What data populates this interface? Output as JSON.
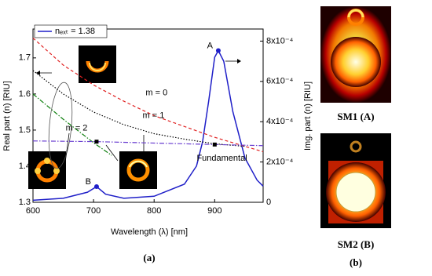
{
  "chart_data": {
    "type": "line",
    "xlabel": "Wavelength (λ) [nm]",
    "ylabel": "Real part (n) [RIU]",
    "y2label": "Img. part (n) [RIU]",
    "xlim": [
      600,
      980
    ],
    "xticks": [
      600,
      700,
      800,
      900
    ],
    "ylim": [
      1.3,
      1.78
    ],
    "yticks": [
      1.3,
      1.4,
      1.5,
      1.6,
      1.7
    ],
    "y2lim": [
      0,
      0.00086
    ],
    "y2ticks": [
      {
        "value": 0,
        "label": "0"
      },
      {
        "value": 0.0002,
        "label": "2x10⁻⁴"
      },
      {
        "value": 0.0004,
        "label": "4x10⁻⁴"
      },
      {
        "value": 0.0006,
        "label": "6x10⁻⁴"
      },
      {
        "value": 0.0008,
        "label": "8x10⁻⁴"
      }
    ],
    "series": [
      {
        "name": "nₑₓₜ = 1.38",
        "color": "#1f1fc8",
        "dash": "none",
        "axis": "y2",
        "x": [
          600,
          650,
          690,
          705,
          720,
          750,
          800,
          850,
          870,
          880,
          890,
          900,
          906,
          915,
          930,
          950,
          970,
          980
        ],
        "values": [
          1e-05,
          2e-05,
          5e-05,
          7.8e-05,
          4e-05,
          2e-05,
          3e-05,
          9e-05,
          0.00018,
          0.0003,
          0.0005,
          0.00072,
          0.000753,
          0.0007,
          0.00045,
          0.00022,
          0.00011,
          8e-05
        ]
      },
      {
        "color": "#e02020",
        "dash": "4,3",
        "x": [
          600,
          650,
          700,
          750,
          800,
          850,
          900,
          950,
          980
        ],
        "values": [
          1.755,
          1.68,
          1.625,
          1.58,
          1.54,
          1.51,
          1.48,
          1.455,
          1.44
        ]
      },
      {
        "color": "#000000",
        "dash": "1.5,2",
        "x": [
          600,
          650,
          700,
          750,
          800,
          850,
          900,
          950
        ],
        "values": [
          1.665,
          1.6,
          1.55,
          1.515,
          1.49,
          1.475,
          1.462,
          1.455
        ]
      },
      {
        "color": "#108010",
        "dash": "6,2,1.5,2",
        "x": [
          600,
          650,
          700,
          730
        ],
        "values": [
          1.6,
          1.53,
          1.465,
          1.43
        ]
      },
      {
        "color": "#6a3fd0",
        "dash": "6,2,1.5,2",
        "x": [
          600,
          705,
          900,
          980
        ],
        "values": [
          1.47,
          1.468,
          1.46,
          1.457
        ]
      }
    ],
    "points": [
      {
        "x": 705,
        "y": 1.468
      },
      {
        "x": 900,
        "y": 1.46
      }
    ],
    "annotations": [
      {
        "text": "A",
        "x": 906,
        "y": 0.000753,
        "axis": "y2",
        "marker": "circle"
      },
      {
        "text": "B",
        "x": 705,
        "y": 7.8e-05,
        "axis": "y2",
        "marker": "circle"
      },
      {
        "text": "m = 0",
        "x": 804,
        "y": 1.603
      },
      {
        "text": "m = 1",
        "x": 799,
        "y": 1.54
      },
      {
        "text": "m = 2",
        "x": 672,
        "y": 1.505
      },
      {
        "text": "Fundamental",
        "x": 912,
        "y": 1.421
      }
    ],
    "panel_label": "(a)"
  },
  "images": [
    {
      "caption": "SM1 (A)"
    },
    {
      "caption": "SM2 (B)"
    }
  ],
  "panel_label": "(b)"
}
